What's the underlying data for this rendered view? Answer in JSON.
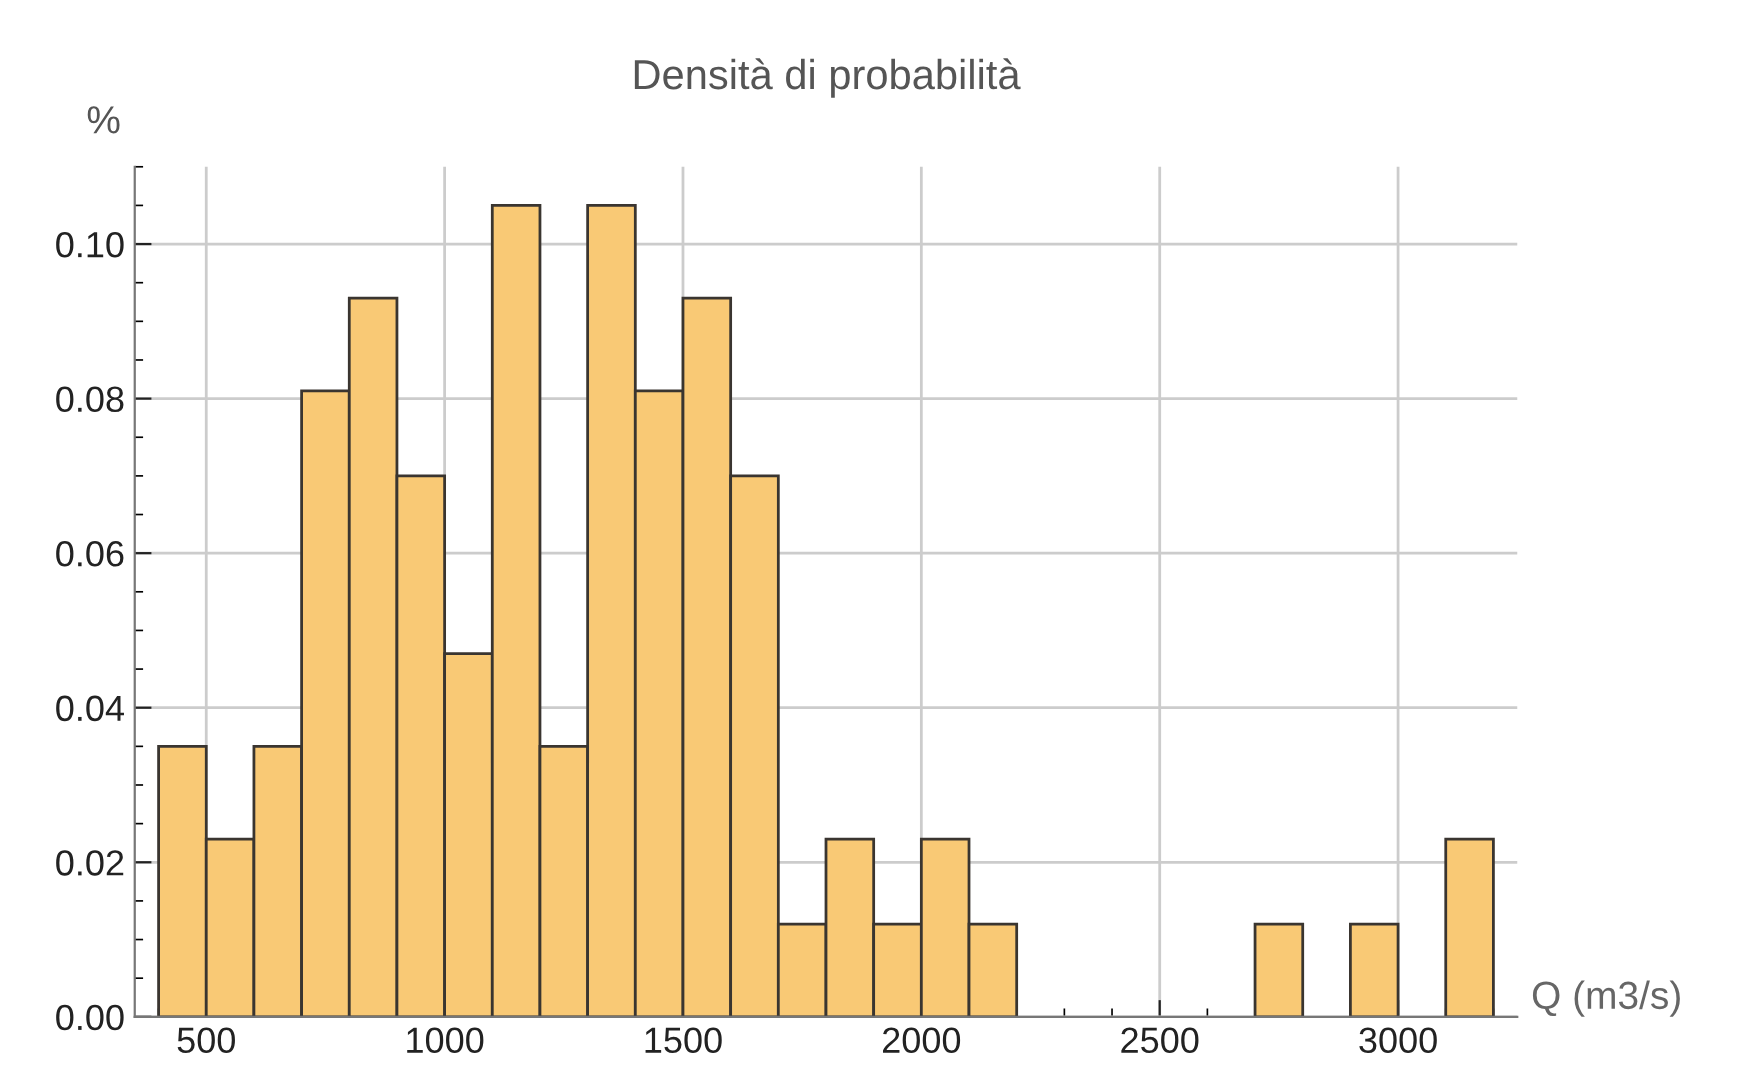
{
  "chart_data": {
    "type": "histogram",
    "title": "Densità di probabilità",
    "xlabel": "Q (m3/s)",
    "ylabel": "%",
    "bins": [
      400,
      500,
      600,
      700,
      800,
      900,
      1000,
      1100,
      1200,
      1300,
      1400,
      1500,
      1600,
      1700,
      1800,
      1900,
      2000,
      2100,
      2200,
      2300,
      2400,
      2500,
      2600,
      2700,
      2800,
      2900,
      3000,
      3100,
      3200
    ],
    "values": [
      0.035,
      0.023,
      0.035,
      0.081,
      0.093,
      0.07,
      0.047,
      0.105,
      0.035,
      0.105,
      0.081,
      0.093,
      0.07,
      0.012,
      0.023,
      0.012,
      0.023,
      0.012,
      0,
      0,
      0,
      0,
      0,
      0.012,
      0,
      0.012,
      0,
      0.023
    ],
    "color": "#f9c975",
    "xlim": [
      350,
      3250
    ],
    "ylim": [
      0,
      0.11
    ],
    "xticks": [
      500,
      1000,
      1500,
      2000,
      2500,
      3000
    ],
    "yticks": [
      {
        "value": 0,
        "label": "0.00"
      },
      {
        "value": 0.02,
        "label": "0.02"
      },
      {
        "value": 0.04,
        "label": "0.04"
      },
      {
        "value": 0.06,
        "label": "0.06"
      },
      {
        "value": 0.08,
        "label": "0.08"
      },
      {
        "value": 0.1,
        "label": "0.10"
      }
    ],
    "grid": true
  }
}
